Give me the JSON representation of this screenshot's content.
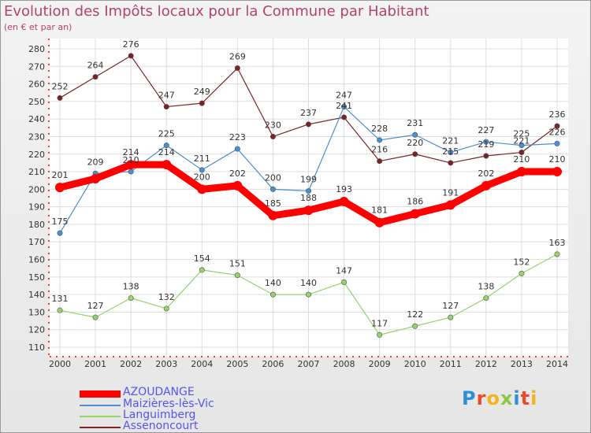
{
  "title": "Evolution des Impôts locaux pour la Commune par Habitant",
  "subtitle": "(en € et par an)",
  "logo": {
    "letters": [
      "P",
      "r",
      "o",
      "x",
      "i",
      "t",
      "i"
    ],
    "colors": [
      "#2f8ed5",
      "#e84b2c",
      "#f5b21a",
      "#8dc63f",
      "#2f8ed5",
      "#e84b2c",
      "#f5b21a"
    ]
  },
  "colors": {
    "AZOUDANGE": "#ff0000",
    "Maizieres": "#4a8fd1",
    "Languimberg": "#95d36b",
    "Assenoncourt": "#7a2226",
    "title": "#b5426e"
  },
  "chart_data": {
    "type": "line",
    "title": "Evolution des Impôts locaux pour la Commune par Habitant",
    "x": [
      "2000",
      "2001",
      "2002",
      "2003",
      "2004",
      "2005",
      "2006",
      "2007",
      "2008",
      "2009",
      "2010",
      "2011",
      "2012",
      "2013",
      "2014"
    ],
    "ylim": [
      110,
      280
    ],
    "yticks": [
      110,
      120,
      130,
      140,
      150,
      160,
      170,
      180,
      190,
      200,
      210,
      220,
      230,
      240,
      250,
      260,
      270,
      280
    ],
    "grid": true,
    "legend_position": "bottom-left",
    "series": [
      {
        "name": "AZOUDANGE",
        "color": "#ff0000",
        "width": 9,
        "values": [
          201,
          206,
          214,
          214,
          200,
          202,
          185,
          188,
          193,
          181,
          186,
          191,
          202,
          210,
          210
        ],
        "labels": [
          "201",
          "",
          "214",
          "214",
          "200",
          "202",
          "185",
          "188",
          "193",
          "181",
          "186",
          "191",
          "202",
          "210",
          "210"
        ]
      },
      {
        "name": "Maizières-lès-Vic",
        "color": "#4a8fd1",
        "width": 1.2,
        "values": [
          175,
          209,
          210,
          225,
          211,
          223,
          200,
          199,
          247,
          228,
          231,
          221,
          227,
          225,
          226
        ],
        "labels": [
          "175",
          "209",
          "210",
          "225",
          "211",
          "223",
          "200",
          "199",
          "247",
          "228",
          "231",
          "221",
          "227",
          "225",
          "226"
        ]
      },
      {
        "name": "Languimberg",
        "color": "#95d36b",
        "width": 1.2,
        "values": [
          131,
          127,
          138,
          132,
          154,
          151,
          140,
          140,
          147,
          117,
          122,
          127,
          138,
          152,
          163
        ],
        "labels": [
          "131",
          "127",
          "138",
          "132",
          "154",
          "151",
          "140",
          "140",
          "147",
          "117",
          "122",
          "127",
          "138",
          "152",
          "163"
        ]
      },
      {
        "name": "Assenoncourt",
        "color": "#7a2226",
        "width": 1.2,
        "values": [
          252,
          264,
          276,
          247,
          249,
          269,
          230,
          237,
          241,
          216,
          220,
          215,
          219,
          221,
          236
        ],
        "labels": [
          "252",
          "264",
          "276",
          "247",
          "249",
          "269",
          "230",
          "237",
          "241",
          "216",
          "220",
          "215",
          "219",
          "221",
          "236"
        ]
      }
    ]
  }
}
